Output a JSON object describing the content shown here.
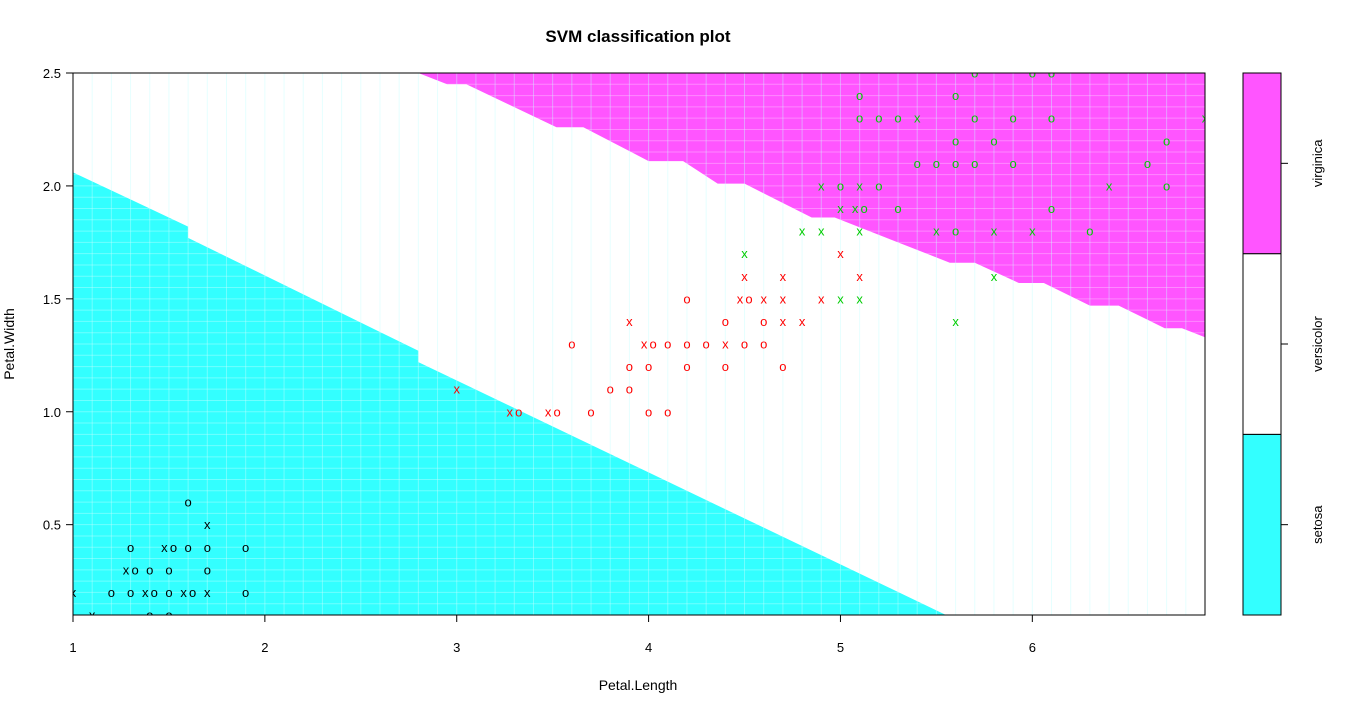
{
  "chart_data": {
    "type": "scatter",
    "title": "SVM classification plot",
    "xlabel": "Petal.Length",
    "ylabel": "Petal.Width",
    "xlim": [
      1,
      6.9
    ],
    "ylim": [
      0.1,
      2.5
    ],
    "xticks": [
      1,
      2,
      3,
      4,
      5,
      6
    ],
    "yticks": [
      0.5,
      1.0,
      1.5,
      2.0,
      2.5
    ],
    "ytick_labels": [
      "0.5",
      "1.0",
      "1.5",
      "2.0",
      "2.5"
    ],
    "grid": false,
    "legend_placement": "right",
    "classes": [
      {
        "name": "setosa",
        "region_color": "#33FFFF",
        "point_color": "#000000"
      },
      {
        "name": "versicolor",
        "region_color": "#FFFFFF",
        "point_color": "#FF0000"
      },
      {
        "name": "virginica",
        "region_color": "#FF55FF",
        "point_color": "#00CC00"
      }
    ],
    "point_symbols": {
      "support_vector": "x",
      "other": "o"
    },
    "regions": {
      "setosa": [
        [
          1,
          0.1
        ],
        [
          1,
          2.06
        ],
        [
          1.6,
          1.82
        ],
        [
          1.6,
          1.77
        ],
        [
          2.8,
          1.27
        ],
        [
          2.8,
          1.22
        ],
        [
          5.55,
          0.1
        ]
      ],
      "virginica": [
        [
          2.8,
          2.5
        ],
        [
          6.9,
          2.5
        ],
        [
          6.9,
          1.33
        ],
        [
          6.78,
          1.37
        ],
        [
          6.69,
          1.37
        ],
        [
          6.45,
          1.47
        ],
        [
          6.3,
          1.47
        ],
        [
          6.06,
          1.57
        ],
        [
          5.93,
          1.57
        ],
        [
          5.7,
          1.66
        ],
        [
          5.57,
          1.66
        ],
        [
          4.97,
          1.86
        ],
        [
          4.85,
          1.86
        ],
        [
          4.5,
          2.01
        ],
        [
          4.36,
          2.01
        ],
        [
          4.18,
          2.11
        ],
        [
          4.0,
          2.11
        ],
        [
          3.66,
          2.26
        ],
        [
          3.52,
          2.26
        ],
        [
          3.05,
          2.45
        ],
        [
          2.95,
          2.45
        ]
      ]
    },
    "points": [
      [
        1.6,
        0.6,
        "setosa",
        "o"
      ],
      [
        1.7,
        0.5,
        "setosa",
        "x"
      ],
      [
        1.3,
        0.4,
        "setosa",
        "o"
      ],
      [
        1.5,
        0.4,
        "setosa",
        "x"
      ],
      [
        1.5,
        0.4,
        "setosa",
        "o"
      ],
      [
        1.6,
        0.4,
        "setosa",
        "o"
      ],
      [
        1.7,
        0.4,
        "setosa",
        "o"
      ],
      [
        1.9,
        0.4,
        "setosa",
        "o"
      ],
      [
        1.3,
        0.3,
        "setosa",
        "x"
      ],
      [
        1.3,
        0.3,
        "setosa",
        "o"
      ],
      [
        1.4,
        0.3,
        "setosa",
        "o"
      ],
      [
        1.5,
        0.3,
        "setosa",
        "o"
      ],
      [
        1.7,
        0.3,
        "setosa",
        "o"
      ],
      [
        1.0,
        0.2,
        "setosa",
        "x"
      ],
      [
        1.2,
        0.2,
        "setosa",
        "o"
      ],
      [
        1.3,
        0.2,
        "setosa",
        "o"
      ],
      [
        1.4,
        0.2,
        "setosa",
        "x"
      ],
      [
        1.4,
        0.2,
        "setosa",
        "o"
      ],
      [
        1.5,
        0.2,
        "setosa",
        "o"
      ],
      [
        1.6,
        0.2,
        "setosa",
        "x"
      ],
      [
        1.6,
        0.2,
        "setosa",
        "o"
      ],
      [
        1.7,
        0.2,
        "setosa",
        "x"
      ],
      [
        1.9,
        0.2,
        "setosa",
        "o"
      ],
      [
        1.1,
        0.1,
        "setosa",
        "x"
      ],
      [
        1.4,
        0.1,
        "setosa",
        "o"
      ],
      [
        1.5,
        0.1,
        "setosa",
        "o"
      ],
      [
        5.0,
        1.7,
        "versicolor",
        "x"
      ],
      [
        4.5,
        1.6,
        "versicolor",
        "x"
      ],
      [
        4.7,
        1.6,
        "versicolor",
        "x"
      ],
      [
        5.1,
        1.6,
        "versicolor",
        "x"
      ],
      [
        4.2,
        1.5,
        "versicolor",
        "o"
      ],
      [
        4.5,
        1.5,
        "versicolor",
        "x"
      ],
      [
        4.5,
        1.5,
        "versicolor",
        "o"
      ],
      [
        4.6,
        1.5,
        "versicolor",
        "x"
      ],
      [
        4.7,
        1.5,
        "versicolor",
        "x"
      ],
      [
        4.9,
        1.5,
        "versicolor",
        "x"
      ],
      [
        3.9,
        1.4,
        "versicolor",
        "x"
      ],
      [
        4.4,
        1.4,
        "versicolor",
        "o"
      ],
      [
        4.6,
        1.4,
        "versicolor",
        "o"
      ],
      [
        4.7,
        1.4,
        "versicolor",
        "x"
      ],
      [
        4.8,
        1.4,
        "versicolor",
        "x"
      ],
      [
        3.6,
        1.3,
        "versicolor",
        "o"
      ],
      [
        4.0,
        1.3,
        "versicolor",
        "x"
      ],
      [
        4.0,
        1.3,
        "versicolor",
        "o"
      ],
      [
        4.1,
        1.3,
        "versicolor",
        "o"
      ],
      [
        4.2,
        1.3,
        "versicolor",
        "o"
      ],
      [
        4.3,
        1.3,
        "versicolor",
        "o"
      ],
      [
        4.4,
        1.3,
        "versicolor",
        "x"
      ],
      [
        4.5,
        1.3,
        "versicolor",
        "o"
      ],
      [
        4.6,
        1.3,
        "versicolor",
        "o"
      ],
      [
        3.9,
        1.2,
        "versicolor",
        "o"
      ],
      [
        4.0,
        1.2,
        "versicolor",
        "o"
      ],
      [
        4.2,
        1.2,
        "versicolor",
        "o"
      ],
      [
        4.4,
        1.2,
        "versicolor",
        "o"
      ],
      [
        4.7,
        1.2,
        "versicolor",
        "o"
      ],
      [
        3.0,
        1.1,
        "versicolor",
        "x"
      ],
      [
        3.8,
        1.1,
        "versicolor",
        "o"
      ],
      [
        3.9,
        1.1,
        "versicolor",
        "o"
      ],
      [
        3.3,
        1.0,
        "versicolor",
        "x"
      ],
      [
        3.3,
        1.0,
        "versicolor",
        "o"
      ],
      [
        3.5,
        1.0,
        "versicolor",
        "x"
      ],
      [
        3.5,
        1.0,
        "versicolor",
        "o"
      ],
      [
        3.7,
        1.0,
        "versicolor",
        "o"
      ],
      [
        4.0,
        1.0,
        "versicolor",
        "o"
      ],
      [
        4.1,
        1.0,
        "versicolor",
        "o"
      ],
      [
        5.7,
        2.5,
        "virginica",
        "o"
      ],
      [
        6.0,
        2.5,
        "virginica",
        "o"
      ],
      [
        6.1,
        2.5,
        "virginica",
        "o"
      ],
      [
        5.1,
        2.4,
        "virginica",
        "o"
      ],
      [
        5.6,
        2.4,
        "virginica",
        "o"
      ],
      [
        5.1,
        2.3,
        "virginica",
        "o"
      ],
      [
        5.2,
        2.3,
        "virginica",
        "o"
      ],
      [
        5.3,
        2.3,
        "virginica",
        "o"
      ],
      [
        5.4,
        2.3,
        "virginica",
        "x"
      ],
      [
        5.7,
        2.3,
        "virginica",
        "o"
      ],
      [
        5.9,
        2.3,
        "virginica",
        "o"
      ],
      [
        6.1,
        2.3,
        "virginica",
        "o"
      ],
      [
        6.9,
        2.3,
        "virginica",
        "x"
      ],
      [
        5.6,
        2.2,
        "virginica",
        "o"
      ],
      [
        5.8,
        2.2,
        "virginica",
        "o"
      ],
      [
        6.7,
        2.2,
        "virginica",
        "o"
      ],
      [
        5.4,
        2.1,
        "virginica",
        "o"
      ],
      [
        5.5,
        2.1,
        "virginica",
        "o"
      ],
      [
        5.6,
        2.1,
        "virginica",
        "o"
      ],
      [
        5.7,
        2.1,
        "virginica",
        "o"
      ],
      [
        5.9,
        2.1,
        "virginica",
        "o"
      ],
      [
        6.6,
        2.1,
        "virginica",
        "o"
      ],
      [
        4.9,
        2.0,
        "virginica",
        "x"
      ],
      [
        5.0,
        2.0,
        "virginica",
        "o"
      ],
      [
        5.1,
        2.0,
        "virginica",
        "x"
      ],
      [
        5.2,
        2.0,
        "virginica",
        "o"
      ],
      [
        6.4,
        2.0,
        "virginica",
        "x"
      ],
      [
        6.7,
        2.0,
        "virginica",
        "o"
      ],
      [
        5.0,
        1.9,
        "virginica",
        "x"
      ],
      [
        5.1,
        1.9,
        "virginica",
        "x"
      ],
      [
        5.1,
        1.9,
        "virginica",
        "o"
      ],
      [
        5.3,
        1.9,
        "virginica",
        "o"
      ],
      [
        6.1,
        1.9,
        "virginica",
        "o"
      ],
      [
        4.8,
        1.8,
        "virginica",
        "x"
      ],
      [
        4.9,
        1.8,
        "virginica",
        "x"
      ],
      [
        5.1,
        1.8,
        "virginica",
        "x"
      ],
      [
        5.5,
        1.8,
        "virginica",
        "x"
      ],
      [
        5.6,
        1.8,
        "virginica",
        "o"
      ],
      [
        5.8,
        1.8,
        "virginica",
        "x"
      ],
      [
        6.0,
        1.8,
        "virginica",
        "x"
      ],
      [
        6.3,
        1.8,
        "virginica",
        "o"
      ],
      [
        4.5,
        1.7,
        "virginica",
        "x"
      ],
      [
        5.8,
        1.6,
        "virginica",
        "x"
      ],
      [
        5.0,
        1.5,
        "virginica",
        "x"
      ],
      [
        5.1,
        1.5,
        "virginica",
        "x"
      ],
      [
        5.6,
        1.4,
        "virginica",
        "x"
      ]
    ]
  }
}
